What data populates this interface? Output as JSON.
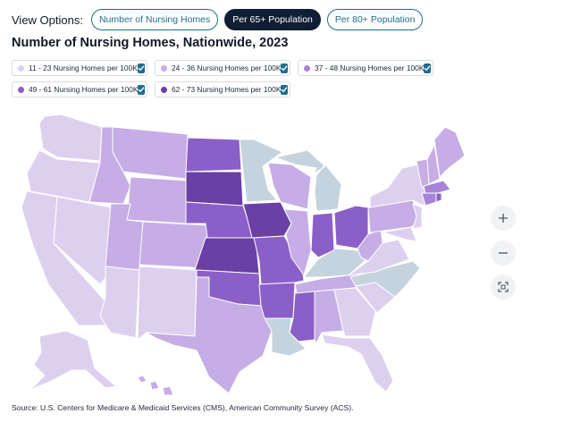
{
  "view_options": {
    "label": "View Options:",
    "buttons": [
      {
        "label": "Number of Nursing Homes",
        "active": false
      },
      {
        "label": "Per 65+ Population",
        "active": true
      },
      {
        "label": "Per 80+ Population",
        "active": false
      }
    ]
  },
  "title": "Number of Nursing Homes, Nationwide, 2023",
  "legend": [
    {
      "label": "11 - 23 Nursing Homes per 100K",
      "color": "#ddd0ef",
      "checked": true
    },
    {
      "label": "24 - 36 Nursing Homes per 100K",
      "color": "#c6ade6",
      "checked": true
    },
    {
      "label": "37 - 48 Nursing Homes per 100K",
      "color": "#a784d8",
      "checked": true
    },
    {
      "label": "49 - 61 Nursing Homes per 100K",
      "color": "#8b5fc8",
      "checked": true
    },
    {
      "label": "62 - 73 Nursing Homes per 100K",
      "color": "#6a3fa6",
      "checked": true
    }
  ],
  "no_data_color": "#c5d3de",
  "zoom": {
    "in_icon": "plus-icon",
    "out_icon": "minus-icon",
    "reset_icon": "fullscreen-icon"
  },
  "source": "Source: U.S. Centers for Medicare & Medicaid Services (CMS), American Community Survey (ACS)."
}
